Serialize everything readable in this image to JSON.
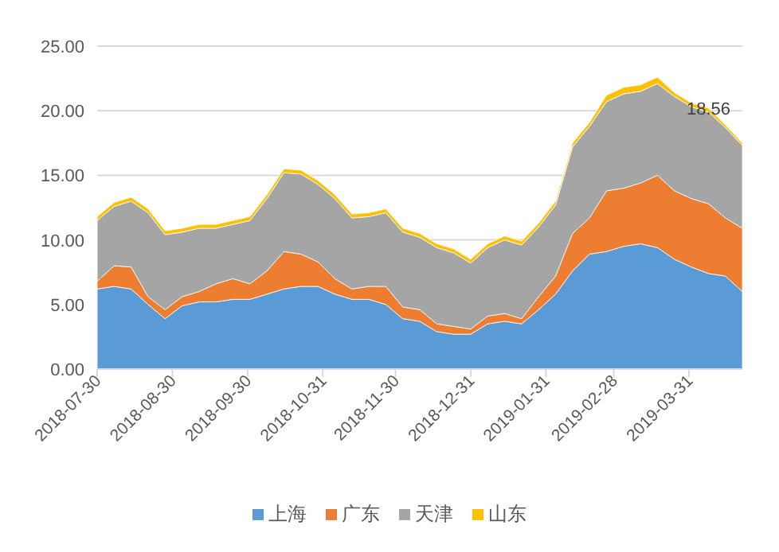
{
  "chart_data": {
    "type": "area",
    "stacked": true,
    "legend": "bottom",
    "grid": "y",
    "x": [
      "2018-07-30",
      "2018-08-06",
      "2018-08-13",
      "2018-08-20",
      "2018-08-27",
      "2018-09-03",
      "2018-09-10",
      "2018-09-17",
      "2018-09-24",
      "2018-10-01",
      "2018-10-08",
      "2018-10-15",
      "2018-10-22",
      "2018-10-29",
      "2018-11-05",
      "2018-11-12",
      "2018-11-19",
      "2018-11-26",
      "2018-12-03",
      "2018-12-10",
      "2018-12-17",
      "2018-12-24",
      "2018-12-31",
      "2019-01-07",
      "2019-01-14",
      "2019-01-21",
      "2019-01-28",
      "2019-02-04",
      "2019-02-11",
      "2019-02-18",
      "2019-02-25",
      "2019-03-04",
      "2019-03-11",
      "2019-03-18",
      "2019-03-25",
      "2019-04-01",
      "2019-04-08",
      "2019-04-15",
      "2019-04-22"
    ],
    "series": [
      {
        "name": "上海",
        "color": "#5b9bd5",
        "values": [
          6.2,
          6.4,
          6.2,
          5.0,
          3.9,
          4.9,
          5.2,
          5.2,
          5.4,
          5.4,
          5.8,
          6.2,
          6.4,
          6.4,
          5.8,
          5.4,
          5.4,
          5.0,
          3.9,
          3.7,
          2.9,
          2.7,
          2.7,
          3.5,
          3.7,
          3.5,
          4.6,
          5.8,
          7.6,
          8.9,
          9.1,
          9.5,
          9.7,
          9.4,
          8.5,
          7.9,
          7.4,
          7.2,
          6.0
        ]
      },
      {
        "name": "广东",
        "color": "#ed7d31",
        "values": [
          0.6,
          1.6,
          1.7,
          0.6,
          0.7,
          0.7,
          0.8,
          1.4,
          1.6,
          1.2,
          1.8,
          2.9,
          2.5,
          1.9,
          1.2,
          0.8,
          1.0,
          1.4,
          0.9,
          0.9,
          0.6,
          0.6,
          0.4,
          0.6,
          0.6,
          0.4,
          1.0,
          1.4,
          2.9,
          2.8,
          4.7,
          4.5,
          4.7,
          5.6,
          5.3,
          5.3,
          5.4,
          4.5,
          4.9
        ]
      },
      {
        "name": "天津",
        "color": "#a5a5a5",
        "values": [
          4.7,
          4.6,
          5.1,
          6.5,
          5.8,
          5.0,
          4.9,
          4.3,
          4.2,
          4.9,
          5.6,
          6.1,
          6.2,
          6.0,
          6.2,
          5.5,
          5.4,
          5.7,
          5.8,
          5.6,
          5.9,
          5.7,
          5.1,
          5.3,
          5.7,
          5.7,
          5.4,
          5.5,
          6.7,
          7.1,
          6.9,
          7.3,
          7.1,
          7.1,
          7.3,
          7.1,
          7.1,
          7.0,
          6.4
        ]
      },
      {
        "name": "山东",
        "color": "#ffc000",
        "values": [
          0.3,
          0.3,
          0.3,
          0.3,
          0.3,
          0.3,
          0.3,
          0.3,
          0.3,
          0.3,
          0.3,
          0.3,
          0.3,
          0.3,
          0.3,
          0.3,
          0.3,
          0.3,
          0.3,
          0.3,
          0.3,
          0.3,
          0.3,
          0.3,
          0.3,
          0.3,
          0.3,
          0.3,
          0.3,
          0.3,
          0.5,
          0.5,
          0.5,
          0.5,
          0.3,
          0.3,
          0.3,
          0.2,
          0.2
        ]
      }
    ],
    "xlim": [
      "2018-07-30",
      "2019-04-22"
    ],
    "xticks": [
      "2018-07-30",
      "2018-08-30",
      "2018-09-30",
      "2018-10-31",
      "2018-11-30",
      "2018-12-31",
      "2019-01-31",
      "2019-02-28",
      "2019-03-31"
    ],
    "ylim": [
      0,
      25
    ],
    "yticks": [
      {
        "value": 0,
        "label": "0.00"
      },
      {
        "value": 5,
        "label": "5.00"
      },
      {
        "value": 10,
        "label": "10.00"
      },
      {
        "value": 15,
        "label": "15.00"
      },
      {
        "value": 20,
        "label": "20.00"
      },
      {
        "value": 25,
        "label": "25.00"
      }
    ],
    "annotations": [
      "18.56"
    ]
  }
}
